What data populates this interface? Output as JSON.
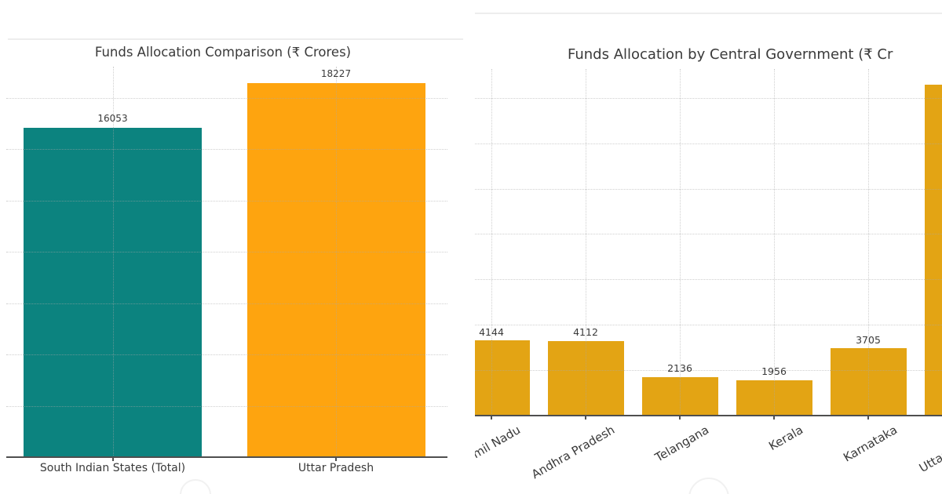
{
  "figure": {
    "background": "#ffffff",
    "text_color": "#3a3a3a",
    "axis_color": "#4f4f4f",
    "grid_color": "#a8a8a8"
  },
  "chart_data": [
    {
      "type": "bar",
      "title": "Funds Allocation Comparison (₹ Crores)",
      "categories": [
        "South Indian States (Total)",
        "Uttar Pradesh"
      ],
      "values": [
        16053,
        18227
      ],
      "bar_colors": [
        "#0c837f",
        "#fea40f"
      ],
      "xlabel": "",
      "ylabel": "",
      "ylim": [
        0,
        19500
      ],
      "grid": true,
      "legend": "none",
      "value_labels_shown": true,
      "yaxis_tick_labels_visible": false
    },
    {
      "type": "bar",
      "title": "Funds Allocation by Central Government (₹ Cr",
      "categories": [
        "Tamil Nadu",
        "Andhra Pradesh",
        "Telangana",
        "Kerala",
        "Karnataka",
        "Uttar Pradesh"
      ],
      "values": [
        4144,
        4112,
        2136,
        1956,
        3705,
        18227
      ],
      "bar_colors": [
        "#e3a414"
      ],
      "xlabel": "",
      "ylabel": "",
      "ylim": [
        0,
        19100
      ],
      "xtick_rotation": 30,
      "grid": true,
      "legend": "none",
      "value_labels_shown": true,
      "yaxis_tick_labels_visible": false
    }
  ]
}
